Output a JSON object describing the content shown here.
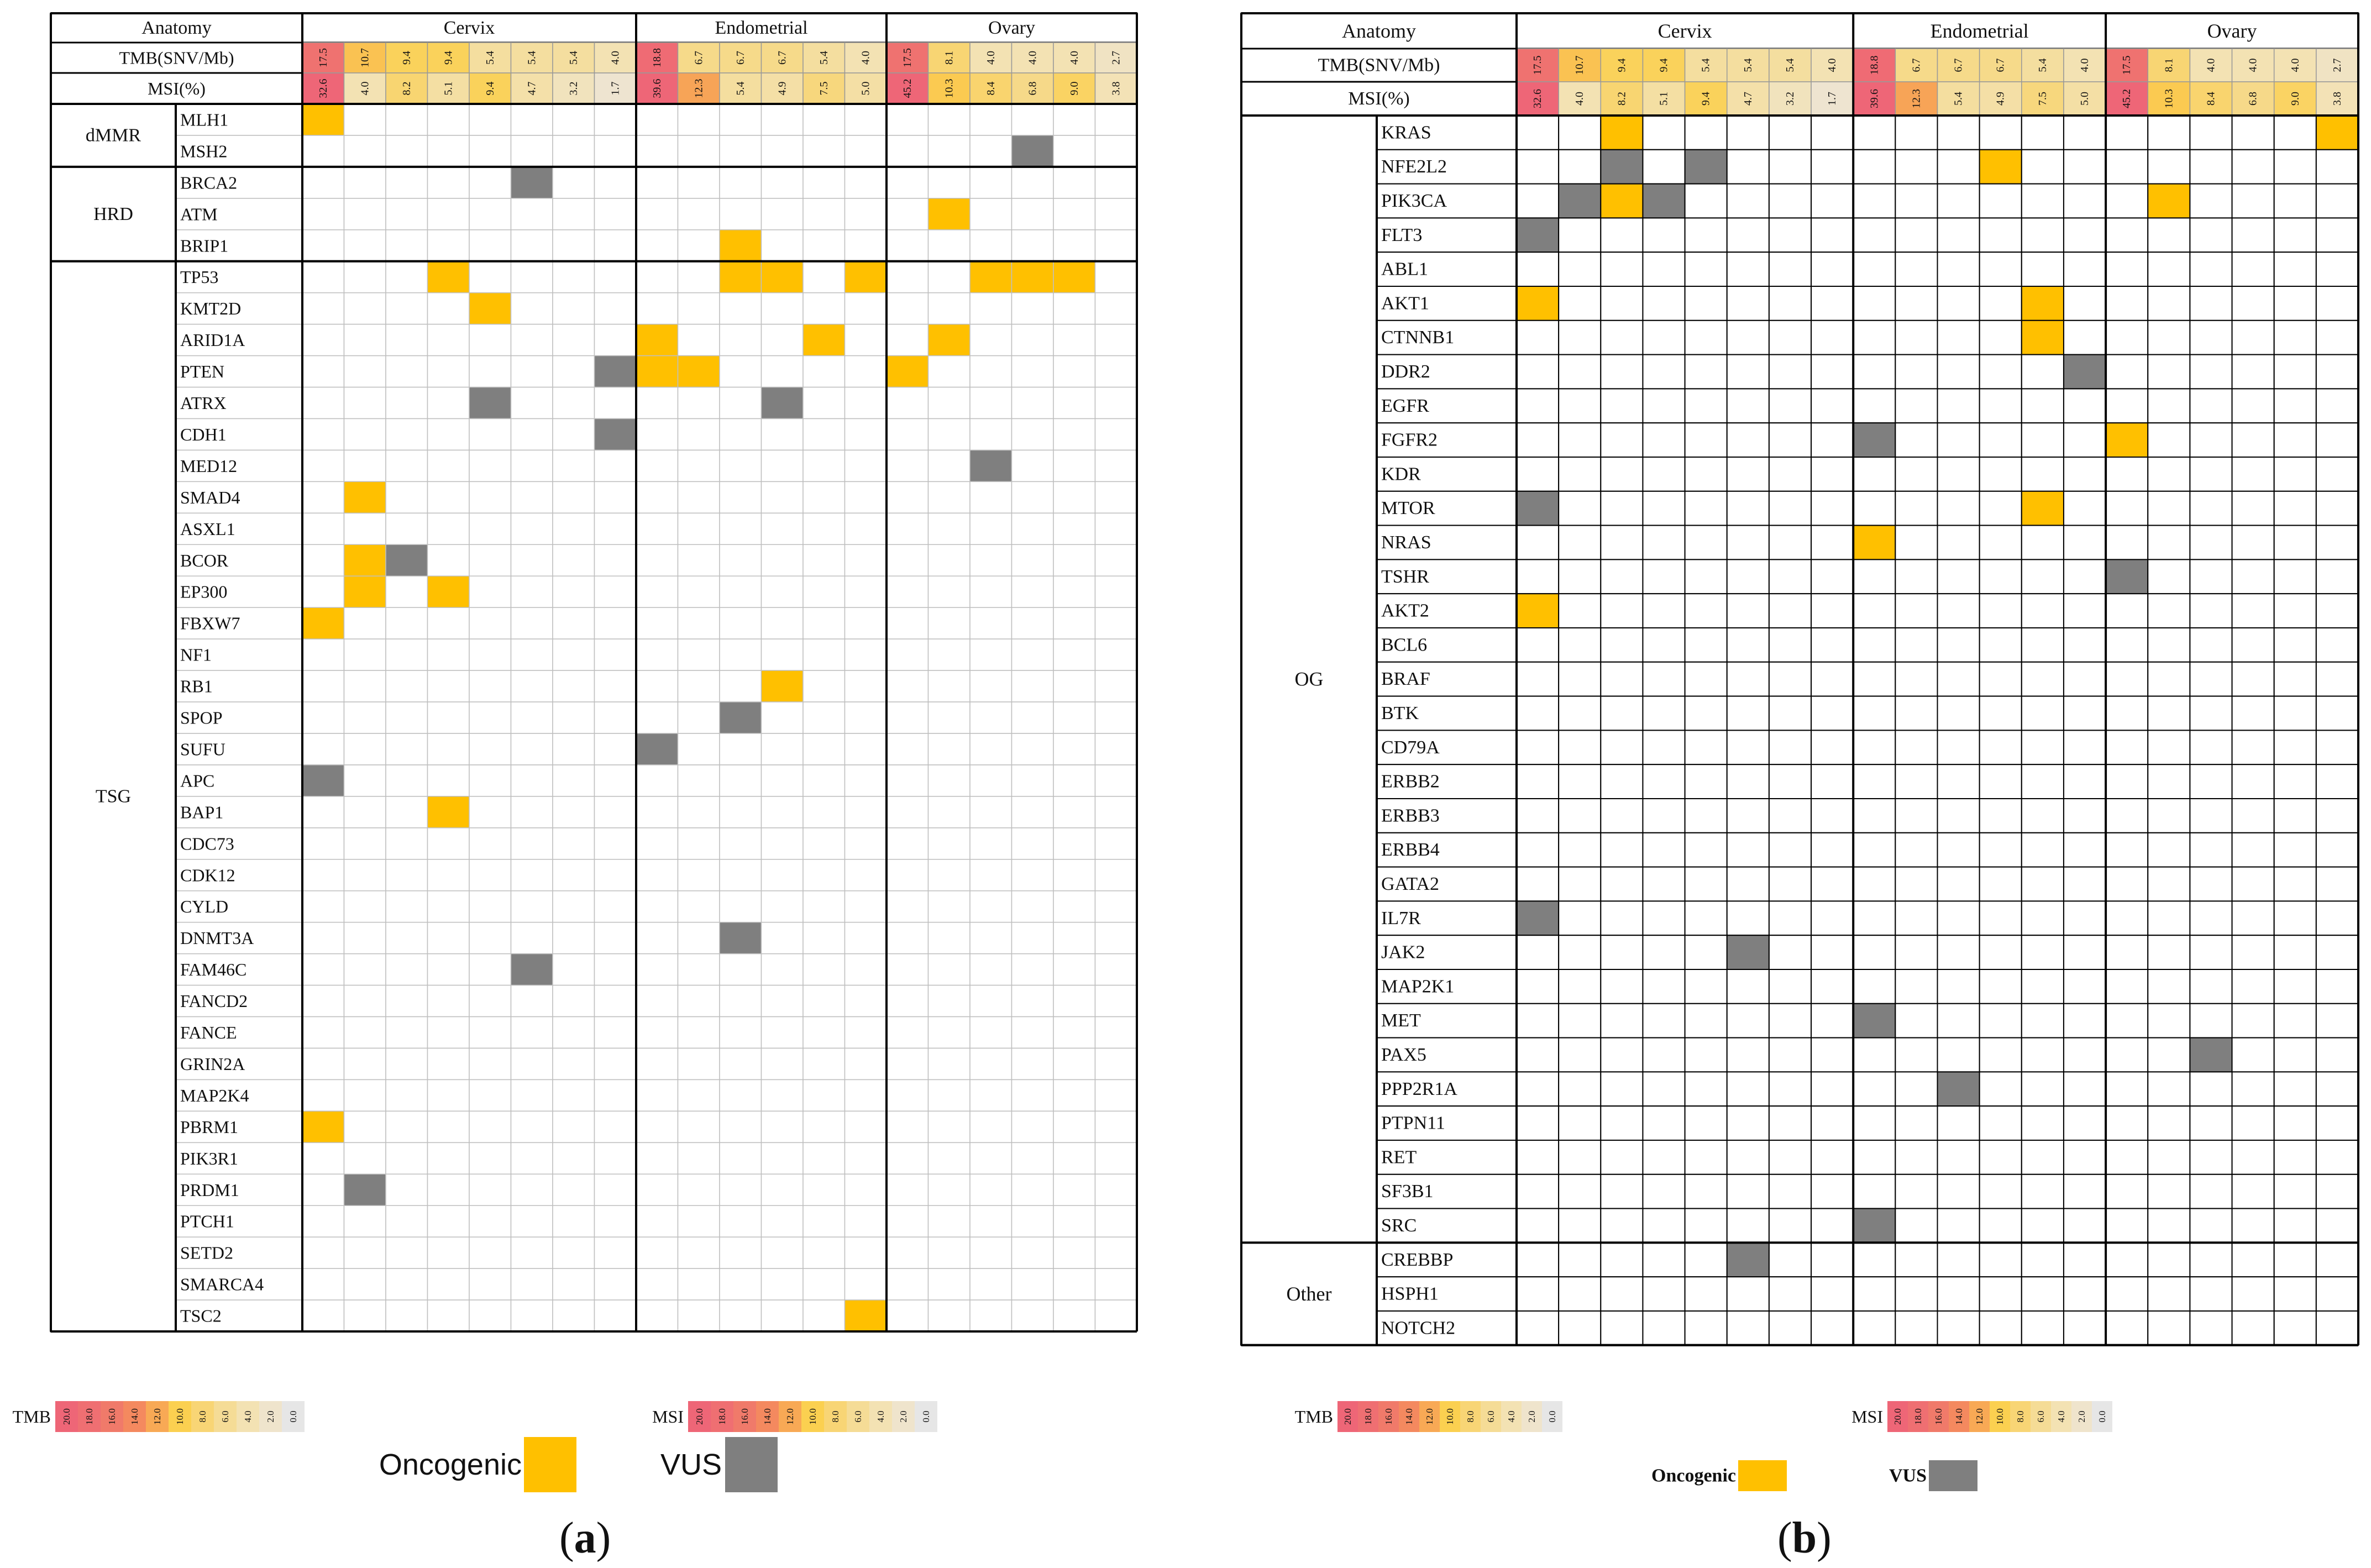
{
  "colors": {
    "oncogenic": "#FFC000",
    "vus": "#7F7F7F",
    "grid_line": "#000000",
    "light_line": "#BFBFBF"
  },
  "chart_data": [
    {
      "type": "heatmap",
      "panel": "(a)",
      "header_anatomy": "Anatomy",
      "groups": [
        {
          "name": "Cervix",
          "count": 8
        },
        {
          "name": "Endometrial",
          "count": 6
        },
        {
          "name": "Ovary",
          "count": 6
        }
      ],
      "tmb_label": "TMB(SNV/Mb)",
      "msi_label": "MSI(%)",
      "tmb": [
        "17.5",
        "10.7",
        "9.4",
        "9.4",
        "5.4",
        "5.4",
        "5.4",
        "4.0",
        "18.8",
        "6.7",
        "6.7",
        "6.7",
        "5.4",
        "4.0",
        "17.5",
        "8.1",
        "4.0",
        "4.0",
        "4.0",
        "2.7"
      ],
      "msi": [
        "32.6",
        "4.0",
        "8.2",
        "5.1",
        "9.4",
        "4.7",
        "3.2",
        "1.7",
        "39.6",
        "12.3",
        "5.4",
        "4.9",
        "7.5",
        "5.0",
        "45.2",
        "10.3",
        "8.4",
        "6.8",
        "9.0",
        "3.8"
      ],
      "categories": [
        {
          "name": "dMMR",
          "genes": [
            {
              "gene": "MLH1",
              "oncogenic": [
                0
              ],
              "vus": []
            },
            {
              "gene": "MSH2",
              "oncogenic": [],
              "vus": [
                17
              ]
            }
          ]
        },
        {
          "name": "HRD",
          "genes": [
            {
              "gene": "BRCA2",
              "oncogenic": [],
              "vus": [
                5
              ]
            },
            {
              "gene": "ATM",
              "oncogenic": [
                15
              ],
              "vus": []
            },
            {
              "gene": "BRIP1",
              "oncogenic": [
                10
              ],
              "vus": []
            }
          ]
        },
        {
          "name": "TSG",
          "genes": [
            {
              "gene": "TP53",
              "oncogenic": [
                3,
                10,
                11,
                13,
                16,
                17,
                18
              ],
              "vus": []
            },
            {
              "gene": "KMT2D",
              "oncogenic": [
                4
              ],
              "vus": []
            },
            {
              "gene": "ARID1A",
              "oncogenic": [
                8,
                12,
                15
              ],
              "vus": []
            },
            {
              "gene": "PTEN",
              "oncogenic": [
                8,
                9,
                14
              ],
              "vus": [
                7
              ]
            },
            {
              "gene": "ATRX",
              "oncogenic": [],
              "vus": [
                4,
                11
              ]
            },
            {
              "gene": "CDH1",
              "oncogenic": [],
              "vus": [
                7
              ]
            },
            {
              "gene": "MED12",
              "oncogenic": [],
              "vus": [
                16
              ]
            },
            {
              "gene": "SMAD4",
              "oncogenic": [
                1
              ],
              "vus": []
            },
            {
              "gene": "ASXL1",
              "oncogenic": [],
              "vus": []
            },
            {
              "gene": "BCOR",
              "oncogenic": [
                1
              ],
              "vus": [
                2
              ]
            },
            {
              "gene": "EP300",
              "oncogenic": [
                1,
                3
              ],
              "vus": []
            },
            {
              "gene": "FBXW7",
              "oncogenic": [
                0
              ],
              "vus": []
            },
            {
              "gene": "NF1",
              "oncogenic": [],
              "vus": []
            },
            {
              "gene": "RB1",
              "oncogenic": [
                11
              ],
              "vus": []
            },
            {
              "gene": "SPOP",
              "oncogenic": [],
              "vus": [
                10
              ]
            },
            {
              "gene": "SUFU",
              "oncogenic": [],
              "vus": [
                8
              ]
            },
            {
              "gene": "APC",
              "oncogenic": [],
              "vus": [
                0
              ]
            },
            {
              "gene": "BAP1",
              "oncogenic": [
                3
              ],
              "vus": []
            },
            {
              "gene": "CDC73",
              "oncogenic": [],
              "vus": []
            },
            {
              "gene": "CDK12",
              "oncogenic": [],
              "vus": []
            },
            {
              "gene": "CYLD",
              "oncogenic": [],
              "vus": []
            },
            {
              "gene": "DNMT3A",
              "oncogenic": [],
              "vus": [
                10
              ]
            },
            {
              "gene": "FAM46C",
              "oncogenic": [],
              "vus": [
                5
              ]
            },
            {
              "gene": "FANCD2",
              "oncogenic": [],
              "vus": []
            },
            {
              "gene": "FANCE",
              "oncogenic": [],
              "vus": []
            },
            {
              "gene": "GRIN2A",
              "oncogenic": [],
              "vus": []
            },
            {
              "gene": "MAP2K4",
              "oncogenic": [],
              "vus": []
            },
            {
              "gene": "PBRM1",
              "oncogenic": [
                0
              ],
              "vus": []
            },
            {
              "gene": "PIK3R1",
              "oncogenic": [],
              "vus": []
            },
            {
              "gene": "PRDM1",
              "oncogenic": [],
              "vus": [
                1
              ]
            },
            {
              "gene": "PTCH1",
              "oncogenic": [],
              "vus": []
            },
            {
              "gene": "SETD2",
              "oncogenic": [],
              "vus": []
            },
            {
              "gene": "SMARCA4",
              "oncogenic": [],
              "vus": []
            },
            {
              "gene": "TSC2",
              "oncogenic": [
                13
              ],
              "vus": []
            }
          ]
        }
      ],
      "legend": {
        "tmb_label": "TMB",
        "msi_label": "MSI",
        "scale_ticks": [
          "20.0",
          "18.0",
          "16.0",
          "14.0",
          "12.0",
          "10.0",
          "8.0",
          "6.0",
          "4.0",
          "2.0",
          "0.0"
        ],
        "oncogenic_label": "Oncogenic",
        "vus_label": "VUS"
      }
    },
    {
      "type": "heatmap",
      "panel": "(b)",
      "header_anatomy": "Anatomy",
      "groups": [
        {
          "name": "Cervix",
          "count": 8
        },
        {
          "name": "Endometrial",
          "count": 6
        },
        {
          "name": "Ovary",
          "count": 6
        }
      ],
      "tmb_label": "TMB(SNV/Mb)",
      "msi_label": "MSI(%)",
      "tmb": [
        "17.5",
        "10.7",
        "9.4",
        "9.4",
        "5.4",
        "5.4",
        "5.4",
        "4.0",
        "18.8",
        "6.7",
        "6.7",
        "6.7",
        "5.4",
        "4.0",
        "17.5",
        "8.1",
        "4.0",
        "4.0",
        "4.0",
        "2.7"
      ],
      "msi": [
        "32.6",
        "4.0",
        "8.2",
        "5.1",
        "9.4",
        "4.7",
        "3.2",
        "1.7",
        "39.6",
        "12.3",
        "5.4",
        "4.9",
        "7.5",
        "5.0",
        "45.2",
        "10.3",
        "8.4",
        "6.8",
        "9.0",
        "3.8"
      ],
      "categories": [
        {
          "name": "OG",
          "genes": [
            {
              "gene": "KRAS",
              "oncogenic": [
                2,
                19
              ],
              "vus": []
            },
            {
              "gene": "NFE2L2",
              "oncogenic": [
                11
              ],
              "vus": [
                2,
                4
              ]
            },
            {
              "gene": "PIK3CA",
              "oncogenic": [
                2,
                15
              ],
              "vus": [
                1,
                3
              ]
            },
            {
              "gene": "FLT3",
              "oncogenic": [],
              "vus": [
                0
              ]
            },
            {
              "gene": "ABL1",
              "oncogenic": [],
              "vus": []
            },
            {
              "gene": "AKT1",
              "oncogenic": [
                0,
                12
              ],
              "vus": []
            },
            {
              "gene": "CTNNB1",
              "oncogenic": [
                12
              ],
              "vus": []
            },
            {
              "gene": "DDR2",
              "oncogenic": [],
              "vus": [
                13
              ]
            },
            {
              "gene": "EGFR",
              "oncogenic": [],
              "vus": []
            },
            {
              "gene": "FGFR2",
              "oncogenic": [
                14
              ],
              "vus": [
                8
              ]
            },
            {
              "gene": "KDR",
              "oncogenic": [],
              "vus": []
            },
            {
              "gene": "MTOR",
              "oncogenic": [
                12
              ],
              "vus": [
                0
              ]
            },
            {
              "gene": "NRAS",
              "oncogenic": [
                8
              ],
              "vus": []
            },
            {
              "gene": "TSHR",
              "oncogenic": [],
              "vus": [
                14
              ]
            },
            {
              "gene": "AKT2",
              "oncogenic": [
                0
              ],
              "vus": []
            },
            {
              "gene": "BCL6",
              "oncogenic": [],
              "vus": []
            },
            {
              "gene": "BRAF",
              "oncogenic": [],
              "vus": []
            },
            {
              "gene": "BTK",
              "oncogenic": [],
              "vus": []
            },
            {
              "gene": "CD79A",
              "oncogenic": [],
              "vus": []
            },
            {
              "gene": "ERBB2",
              "oncogenic": [],
              "vus": []
            },
            {
              "gene": "ERBB3",
              "oncogenic": [],
              "vus": []
            },
            {
              "gene": "ERBB4",
              "oncogenic": [],
              "vus": []
            },
            {
              "gene": "GATA2",
              "oncogenic": [],
              "vus": []
            },
            {
              "gene": "IL7R",
              "oncogenic": [],
              "vus": [
                0
              ]
            },
            {
              "gene": "JAK2",
              "oncogenic": [],
              "vus": [
                5
              ]
            },
            {
              "gene": "MAP2K1",
              "oncogenic": [],
              "vus": []
            },
            {
              "gene": "MET",
              "oncogenic": [],
              "vus": [
                8
              ]
            },
            {
              "gene": "PAX5",
              "oncogenic": [],
              "vus": [
                16
              ]
            },
            {
              "gene": "PPP2R1A",
              "oncogenic": [],
              "vus": [
                10
              ]
            },
            {
              "gene": "PTPN11",
              "oncogenic": [],
              "vus": []
            },
            {
              "gene": "RET",
              "oncogenic": [],
              "vus": []
            },
            {
              "gene": "SF3B1",
              "oncogenic": [],
              "vus": []
            },
            {
              "gene": "SRC",
              "oncogenic": [],
              "vus": [
                8
              ]
            }
          ]
        },
        {
          "name": "Other",
          "genes": [
            {
              "gene": "CREBBP",
              "oncogenic": [],
              "vus": [
                5
              ]
            },
            {
              "gene": "HSPH1",
              "oncogenic": [],
              "vus": []
            },
            {
              "gene": "NOTCH2",
              "oncogenic": [],
              "vus": []
            }
          ]
        }
      ],
      "legend": {
        "tmb_label": "TMB",
        "msi_label": "MSI",
        "scale_ticks": [
          "20.0",
          "18.0",
          "16.0",
          "14.0",
          "12.0",
          "10.0",
          "8.0",
          "6.0",
          "4.0",
          "2.0",
          "0.0"
        ],
        "oncogenic_label": "Oncogenic",
        "vus_label": "VUS"
      }
    }
  ]
}
